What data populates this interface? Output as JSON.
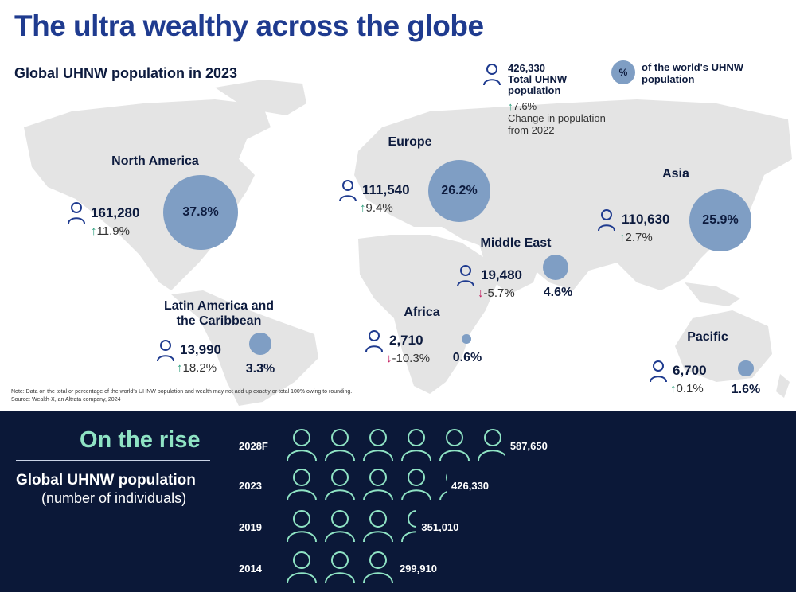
{
  "title": "The ultra wealthy across the globe",
  "subtitle": "Global UHNW population in 2023",
  "legend": {
    "total_value": "426,330",
    "total_label_1": "Total UHNW",
    "total_label_2": "population",
    "change_value": "7.6%",
    "change_label_1": "Change in population",
    "change_label_2": "from 2022",
    "bubble_symbol": "%",
    "share_label_1": "of the world's UHNW",
    "share_label_2": "population"
  },
  "note_1": "Note: Data on the total or percentage of the world's UHNW population and wealth may not add up exactly or total 100% owing to rounding.",
  "note_2": "Source: Wealth-X, an Altrata company, 2024",
  "chart_data": [
    {
      "type": "bubble-map",
      "regions": [
        {
          "name": "North America",
          "population": "161,280",
          "change": "11.9%",
          "direction": "up",
          "share": "37.8%",
          "share_value": 37.8
        },
        {
          "name": "Europe",
          "population": "111,540",
          "change": "9.4%",
          "direction": "up",
          "share": "26.2%",
          "share_value": 26.2
        },
        {
          "name": "Asia",
          "population": "110,630",
          "change": "2.7%",
          "direction": "up",
          "share": "25.9%",
          "share_value": 25.9
        },
        {
          "name": "Middle East",
          "population": "19,480",
          "change": "-5.7%",
          "direction": "down",
          "share": "4.6%",
          "share_value": 4.6
        },
        {
          "name_1": "Latin America and",
          "name_2": "the Caribbean",
          "population": "13,990",
          "change": "18.2%",
          "direction": "up",
          "share": "3.3%",
          "share_value": 3.3
        },
        {
          "name": "Africa",
          "population": "2,710",
          "change": "-10.3%",
          "direction": "down",
          "share": "0.6%",
          "share_value": 0.6
        },
        {
          "name": "Pacific",
          "population": "6,700",
          "change": "0.1%",
          "direction": "up",
          "share": "1.6%",
          "share_value": 1.6
        }
      ]
    },
    {
      "type": "bar",
      "title": "On the rise",
      "subtitle_1": "Global UHNW population",
      "subtitle_2": "(number of individuals)",
      "categories": [
        "2028F",
        "2023",
        "2019",
        "2014"
      ],
      "values": [
        587650,
        426330,
        351010,
        299910
      ],
      "labels": [
        "587,650",
        "426,330",
        "351,010",
        "299,910"
      ],
      "unit_per_icon": 100000
    }
  ],
  "colors": {
    "title": "#1f3b8f",
    "bubble": "#7f9ec4",
    "map": "#e4e4e4",
    "up": "#2a9d7a",
    "down": "#c2185b",
    "dark_band": "#0b1838",
    "accent": "#8fe3c4"
  }
}
